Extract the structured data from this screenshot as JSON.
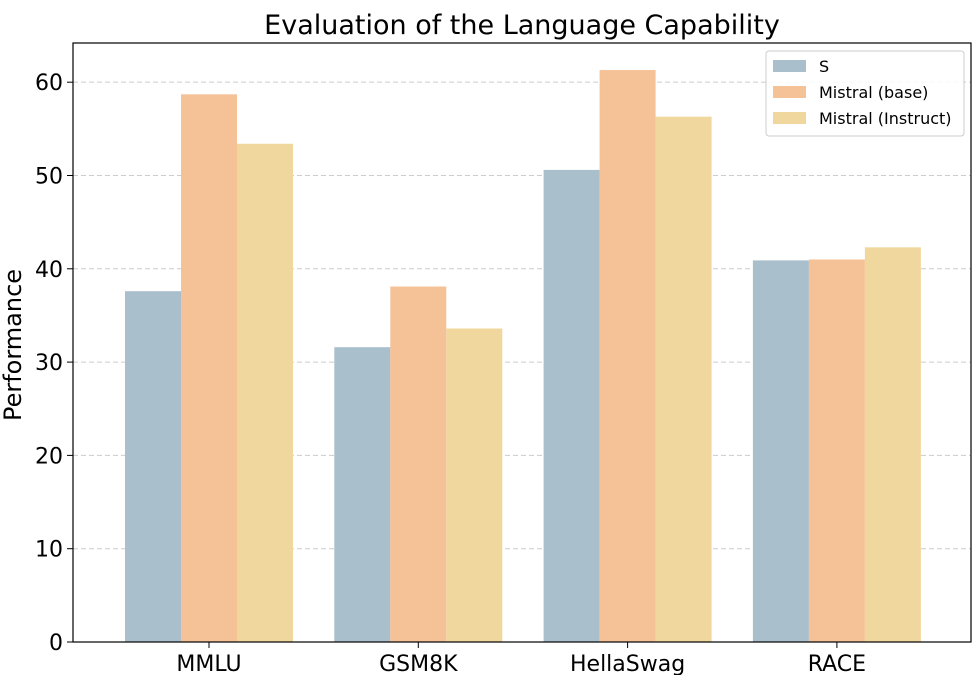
{
  "chart_data": {
    "type": "bar",
    "title": "Evaluation of the Language Capability",
    "xlabel": "",
    "ylabel": "Performance",
    "ylim": [
      0,
      64.2
    ],
    "yticks": [
      0,
      10,
      20,
      30,
      40,
      50,
      60
    ],
    "grid": "y-dashed",
    "legend_position": "top-right",
    "categories": [
      "MMLU",
      "GSM8K",
      "HellaSwag",
      "RACE"
    ],
    "series": [
      {
        "name": "S",
        "color": "#aabfcc",
        "values": [
          37.6,
          31.6,
          50.6,
          40.9
        ]
      },
      {
        "name": "Mistral (base)",
        "color": "#f5c197",
        "values": [
          58.7,
          38.1,
          61.3,
          41.0
        ]
      },
      {
        "name": "Mistral (Instruct)",
        "color": "#f0d79e",
        "values": [
          53.4,
          33.6,
          56.3,
          42.3
        ]
      }
    ]
  }
}
